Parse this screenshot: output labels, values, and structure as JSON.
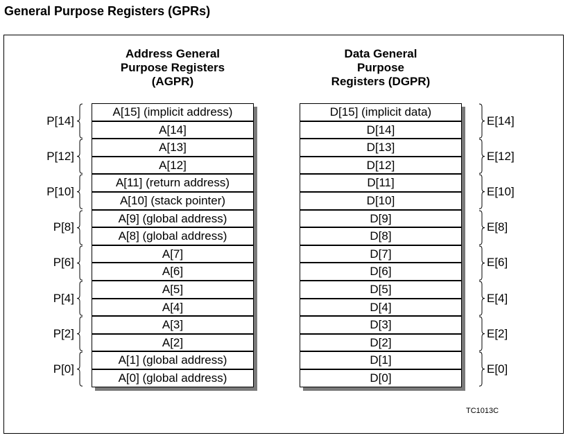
{
  "title": "General Purpose Registers (GPRs)",
  "address_column": {
    "heading": "Address General\nPurpose Registers\n(AGPR)",
    "registers": [
      "A[15] (implicit address)",
      "A[14]",
      "A[13]",
      "A[12]",
      "A[11] (return address)",
      "A[10] (stack pointer)",
      "A[9] (global address)",
      "A[8] (global address)",
      "A[7]",
      "A[6]",
      "A[5]",
      "A[4]",
      "A[3]",
      "A[2]",
      "A[1] (global address)",
      "A[0] (global address)"
    ],
    "pair_labels": [
      "P[14]",
      "P[12]",
      "P[10]",
      "P[8]",
      "P[6]",
      "P[4]",
      "P[2]",
      "P[0]"
    ]
  },
  "data_column": {
    "heading": "Data General\nPurpose\nRegisters (DGPR)",
    "registers": [
      "D[15] (implicit data)",
      "D[14]",
      "D[13]",
      "D[12]",
      "D[11]",
      "D[10]",
      "D[9]",
      "D[8]",
      "D[7]",
      "D[6]",
      "D[5]",
      "D[4]",
      "D[3]",
      "D[2]",
      "D[1]",
      "D[0]"
    ],
    "pair_labels": [
      "E[14]",
      "E[12]",
      "E[10]",
      "E[8]",
      "E[6]",
      "E[4]",
      "E[2]",
      "E[0]"
    ]
  },
  "figure_code": "TC1013C"
}
